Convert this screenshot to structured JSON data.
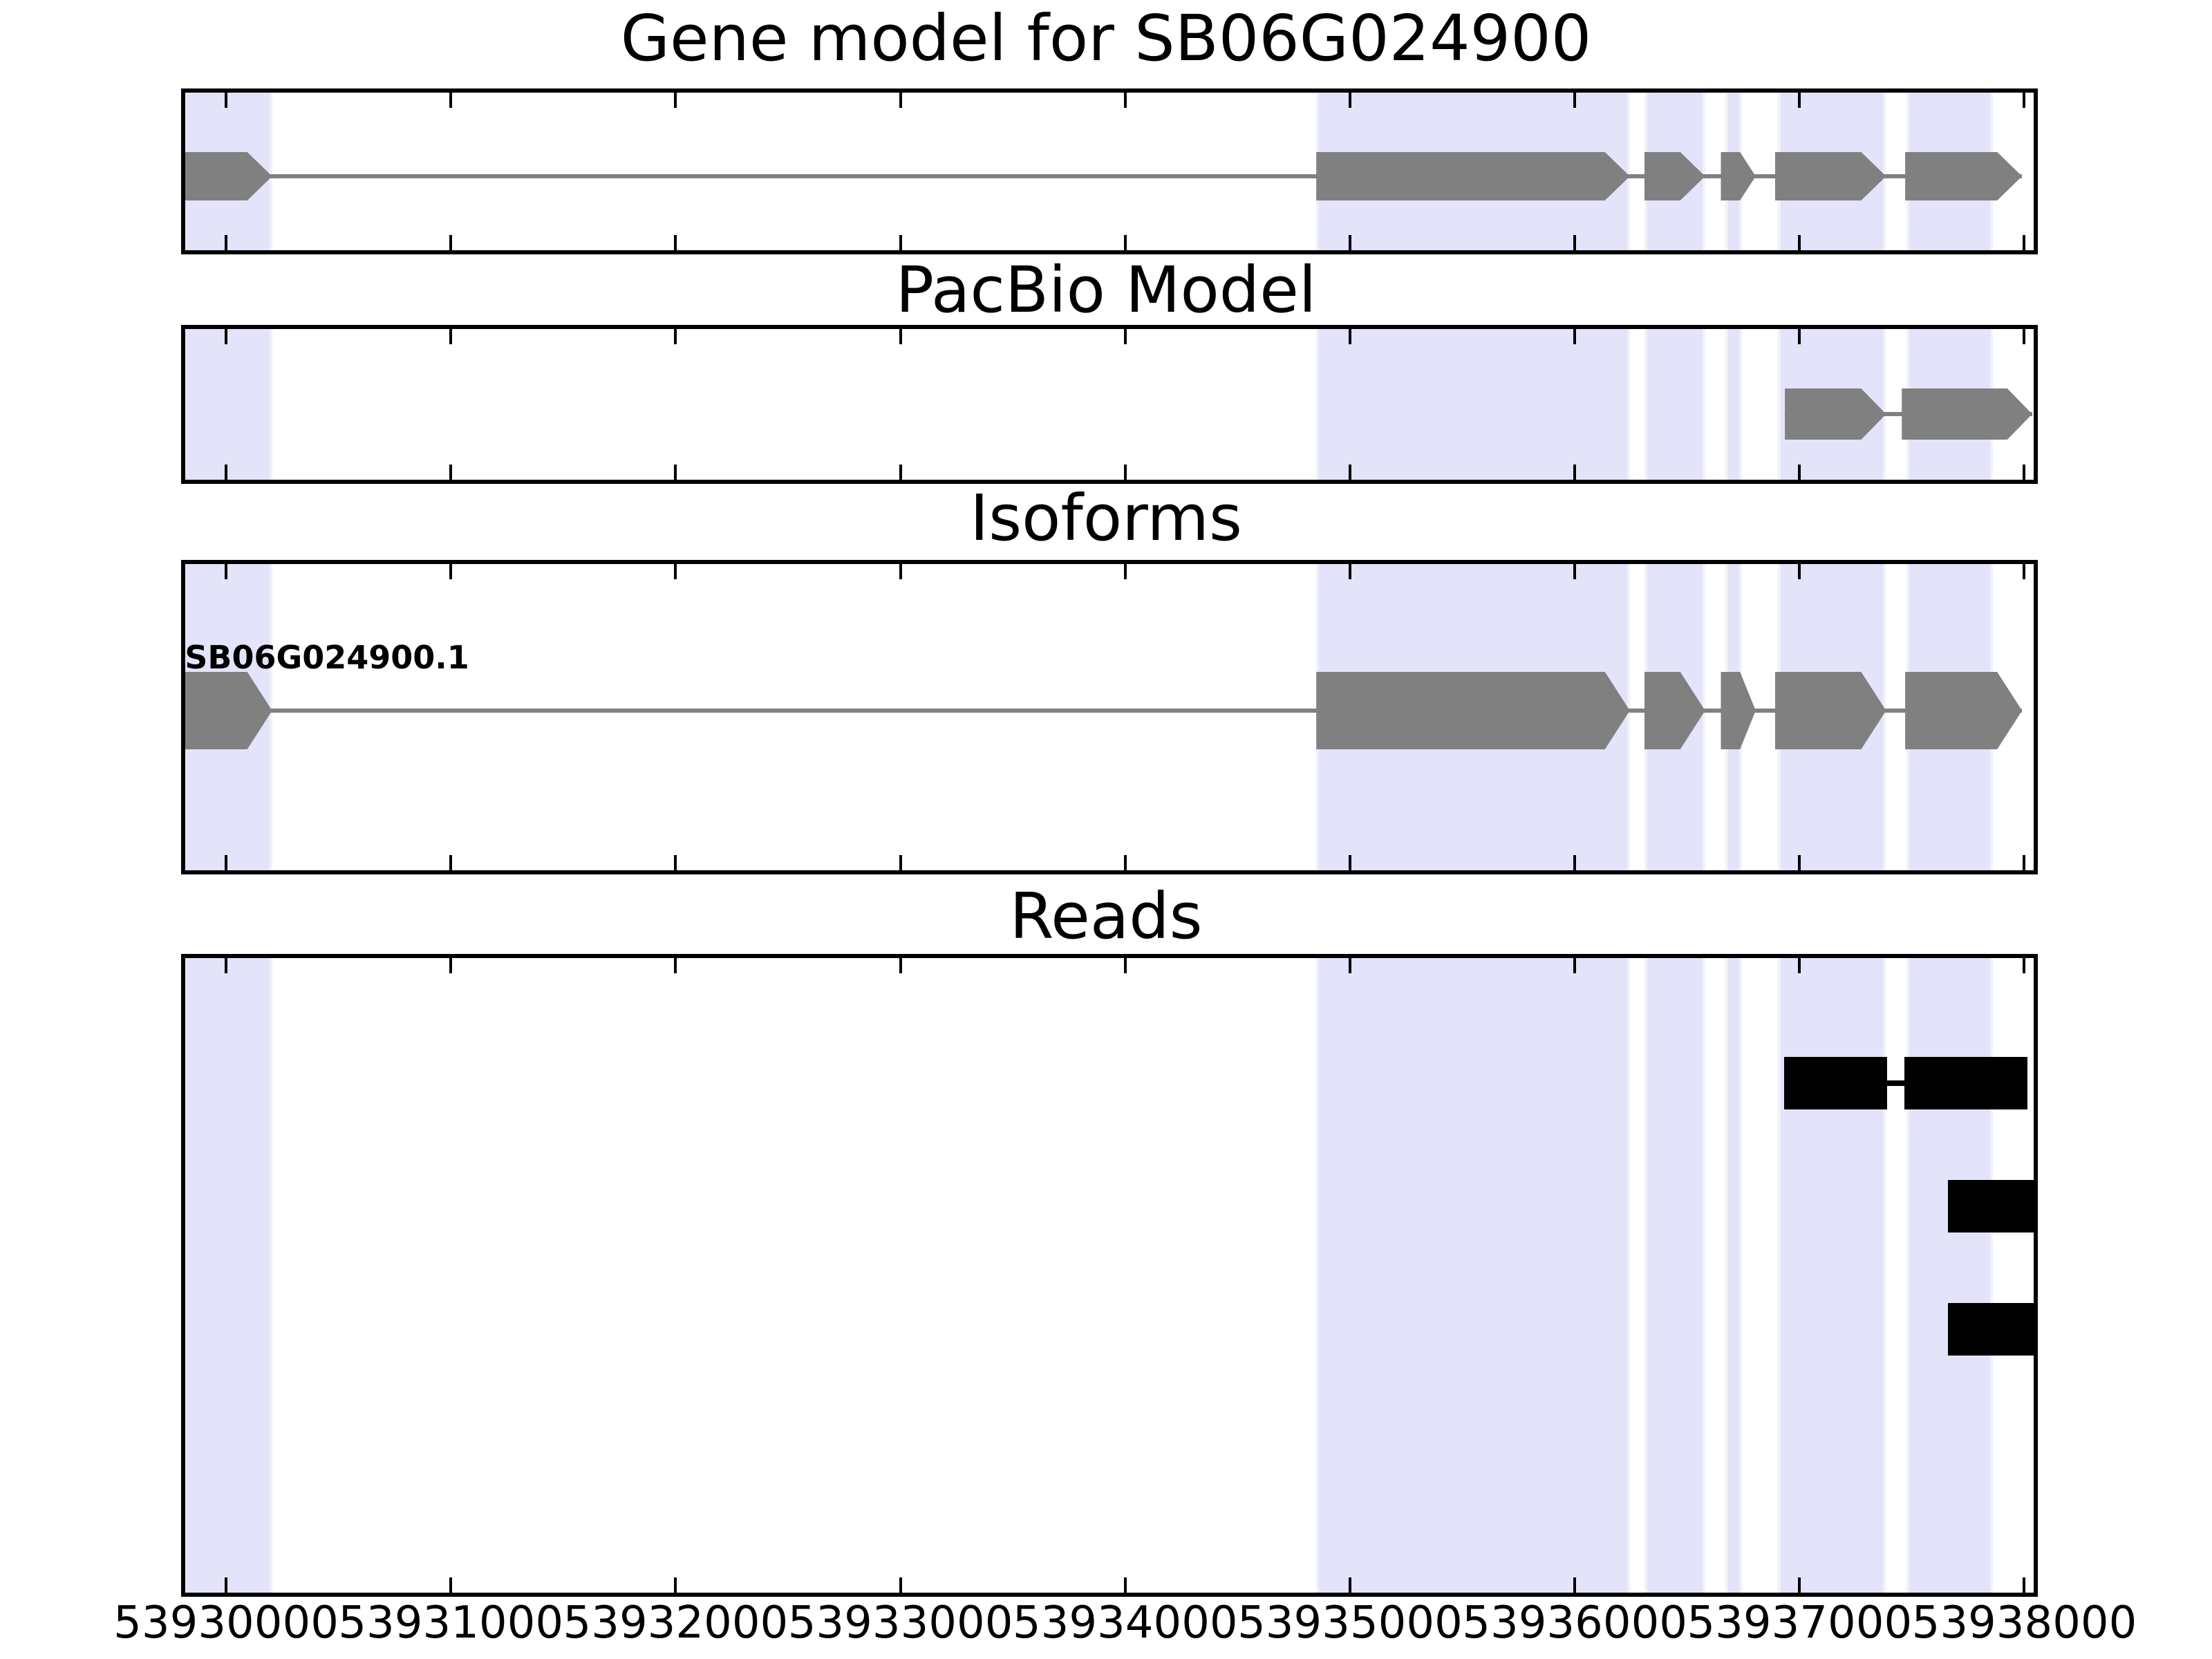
{
  "panels": [
    {
      "key": "gene",
      "title": "Gene model for SB06G024900"
    },
    {
      "key": "pacbio",
      "title": "PacBio Model"
    },
    {
      "key": "isoforms",
      "title": "Isoforms"
    },
    {
      "key": "reads",
      "title": "Reads"
    }
  ],
  "isoform_label": "SB06G024900.1",
  "x_axis": {
    "domain": [
      53929800,
      53938060
    ],
    "tick_values": [
      53930000,
      53931000,
      53932000,
      53933000,
      53934000,
      53935000,
      53936000,
      53937000,
      53938000
    ],
    "tick_labels": [
      "53930000",
      "53931000",
      "53932000",
      "53933000",
      "53934000",
      "53935000",
      "53936000",
      "53937000",
      "53938000"
    ]
  },
  "colors": {
    "exon": "#808080",
    "intron_line": "#808080",
    "highlight_band": "#E3E3FA",
    "highlight_band_edge": "#F1F1FB",
    "read": "#000000",
    "frame": "#000000",
    "background": "#FFFFFF",
    "text": "#000000"
  },
  "chart_data": {
    "type": "gene-model-tracks",
    "title": "Gene model for SB06G024900",
    "x_domain": [
      53929800,
      53938060
    ],
    "x_ticks": [
      53930000,
      53931000,
      53932000,
      53933000,
      53934000,
      53935000,
      53936000,
      53937000,
      53938000
    ],
    "grid": false,
    "highlight_regions": [
      [
        53929810,
        53930205
      ],
      [
        53934850,
        53936245
      ],
      [
        53936310,
        53936580
      ],
      [
        53936670,
        53936745
      ],
      [
        53936905,
        53937385
      ],
      [
        53937475,
        53937860
      ]
    ],
    "tracks": [
      {
        "title": "Gene model for SB06G024900",
        "kind": "gene",
        "features": [
          {
            "name": "SB06G024900",
            "strand": "+",
            "exons": [
              [
                53929810,
                53930205
              ],
              [
                53934850,
                53936245
              ],
              [
                53936310,
                53936580
              ],
              [
                53936650,
                53936805
              ],
              [
                53936890,
                53937385
              ],
              [
                53937470,
                53937990
              ]
            ]
          }
        ]
      },
      {
        "title": "PacBio Model",
        "kind": "gene",
        "features": [
          {
            "name": "pacbio-model",
            "strand": "+",
            "exons": [
              [
                53936935,
                53937385
              ],
              [
                53937455,
                53938035
              ]
            ]
          }
        ]
      },
      {
        "title": "Isoforms",
        "kind": "gene",
        "features": [
          {
            "name": "SB06G024900.1",
            "strand": "+",
            "labeled": true,
            "exons": [
              [
                53929810,
                53930205
              ],
              [
                53934850,
                53936245
              ],
              [
                53936310,
                53936580
              ],
              [
                53936650,
                53936805
              ],
              [
                53936890,
                53937385
              ],
              [
                53937470,
                53937990
              ]
            ]
          }
        ]
      },
      {
        "title": "Reads",
        "kind": "reads",
        "features": [
          {
            "name": "read-1",
            "blocks": [
              [
                53936930,
                53937390
              ],
              [
                53937465,
                53938015
              ]
            ]
          },
          {
            "name": "read-2",
            "blocks": [
              [
                53937660,
                53938050
              ]
            ]
          },
          {
            "name": "read-3",
            "blocks": [
              [
                53937660,
                53938050
              ]
            ]
          }
        ]
      }
    ]
  }
}
